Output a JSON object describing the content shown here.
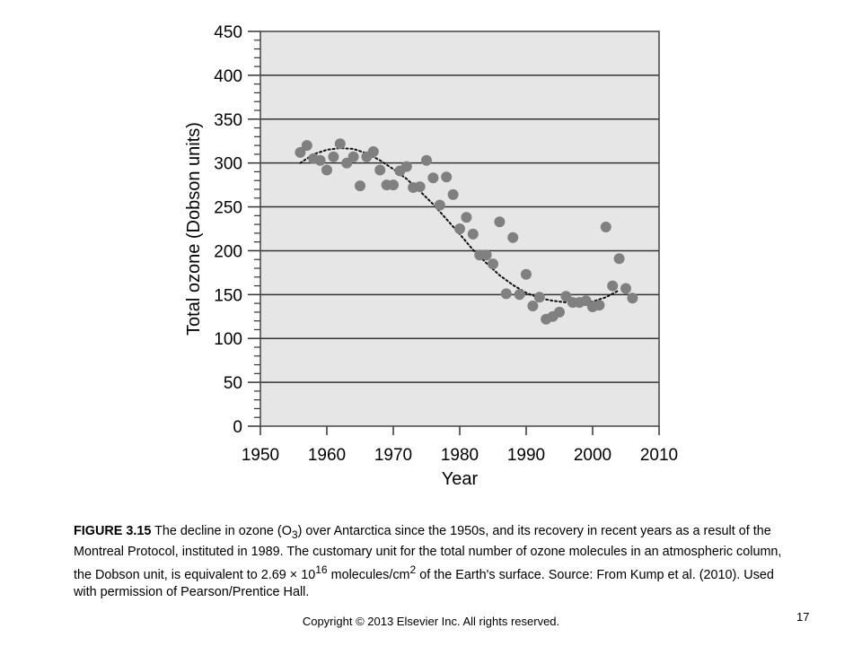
{
  "chart_data": {
    "type": "scatter",
    "xlabel": "Year",
    "ylabel": "Total ozone (Dobson units)",
    "xlim": [
      1950,
      2010
    ],
    "ylim": [
      0,
      450
    ],
    "x_ticks": [
      1950,
      1960,
      1970,
      1980,
      1990,
      2000,
      2010
    ],
    "y_ticks": [
      0,
      50,
      100,
      150,
      200,
      250,
      300,
      350,
      400,
      450
    ],
    "y_minor_step": 10,
    "grid": "horizontal",
    "background_color": "#e6e6e6",
    "marker_color": "#808080",
    "series": [
      {
        "x": [
          1956,
          1957,
          1958,
          1959,
          1960,
          1961,
          1962,
          1963,
          1964,
          1965,
          1966,
          1967,
          1968,
          1969,
          1970,
          1971,
          1972,
          1973,
          1974,
          1975,
          1976,
          1977,
          1978,
          1979,
          1980,
          1981,
          1982,
          1983,
          1984,
          1985,
          1986,
          1987,
          1988,
          1989,
          1990,
          1991,
          1992,
          1993,
          1994,
          1995,
          1996,
          1997,
          1998,
          1999,
          2000,
          2001,
          2002,
          2003,
          2004,
          2005,
          2006
        ],
        "y": [
          312,
          320,
          305,
          303,
          292,
          307,
          322,
          300,
          307,
          274,
          307,
          313,
          292,
          275,
          275,
          291,
          296,
          272,
          273,
          303,
          283,
          252,
          284,
          264,
          225,
          238,
          219,
          195,
          195,
          185,
          233,
          151,
          215,
          150,
          173,
          137,
          147,
          122,
          125,
          130,
          148,
          141,
          141,
          143,
          136,
          138,
          227,
          160,
          191,
          157,
          146
        ]
      }
    ],
    "trend_line": {
      "style": "dotted",
      "x": [
        1956,
        1958,
        1960,
        1962,
        1964,
        1966,
        1968,
        1970,
        1972,
        1974,
        1976,
        1978,
        1980,
        1982,
        1984,
        1986,
        1988,
        1990,
        1992,
        1994,
        1996,
        1998,
        2000,
        2002,
        2004
      ],
      "y": [
        300,
        310,
        315,
        317,
        316,
        311,
        303,
        293,
        282,
        268,
        253,
        236,
        219,
        201,
        186,
        172,
        161,
        152,
        146,
        143,
        141,
        140,
        142,
        147,
        155
      ]
    }
  },
  "caption": {
    "figure_label": "FIGURE 3.15",
    "part1": " The decline in ozone (O",
    "sub": "3",
    "part2": ") over Antarctica since the 1950s, and its recovery in recent years as a result of the Montreal Protocol, instituted in 1989. The customary unit for the total number of ozone molecules in an atmospheric column, the Dobson unit, is equivalent to 2.69 × 10",
    "sup1": "16",
    "part3": " molecules/cm",
    "sup2": "2",
    "part4": " of the Earth's surface. Source: From Kump et al. (2010). Used with permission of Pearson/Prentice Hall."
  },
  "footer": {
    "copyright": "Copyright © 2013 Elsevier Inc. All rights reserved.",
    "page_number": "17"
  }
}
